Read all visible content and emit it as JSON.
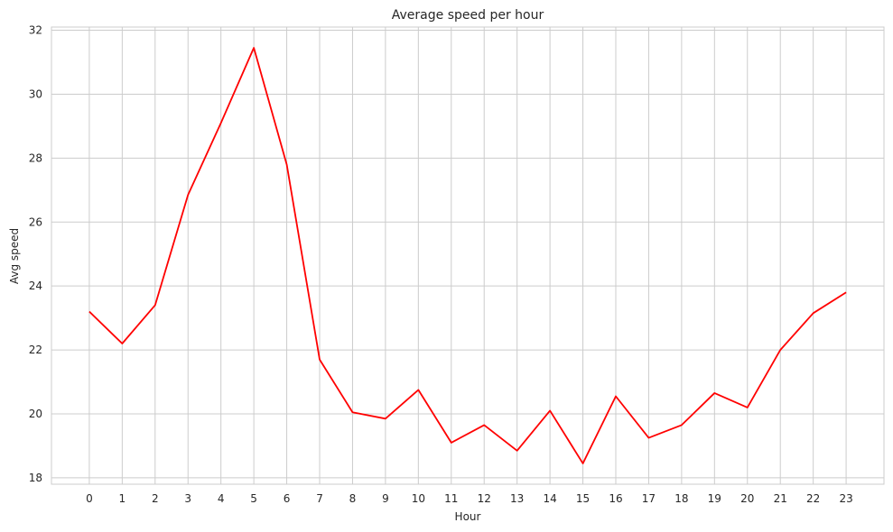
{
  "chart_data": {
    "type": "line",
    "title": "Average speed per hour",
    "xlabel": "Hour",
    "ylabel": "Avg speed",
    "x": [
      0,
      1,
      2,
      3,
      4,
      5,
      6,
      7,
      8,
      9,
      10,
      11,
      12,
      13,
      14,
      15,
      16,
      17,
      18,
      19,
      20,
      21,
      22,
      23
    ],
    "series": [
      {
        "values": [
          23.2,
          22.2,
          23.4,
          26.85,
          29.1,
          31.45,
          27.8,
          21.7,
          20.05,
          19.85,
          20.75,
          19.1,
          19.65,
          18.85,
          20.1,
          18.45,
          20.55,
          19.25,
          19.65,
          20.65,
          20.2,
          22.0,
          23.15,
          23.8
        ]
      }
    ],
    "xlim": [
      -1.15,
      24.15
    ],
    "ylim": [
      17.8,
      32.1
    ],
    "yticks": [
      18,
      20,
      22,
      24,
      26,
      28,
      30,
      32
    ],
    "grid": true,
    "line_color": "#ff0000",
    "grid_color": "#cccccc",
    "frame_color": "#cccccc"
  }
}
